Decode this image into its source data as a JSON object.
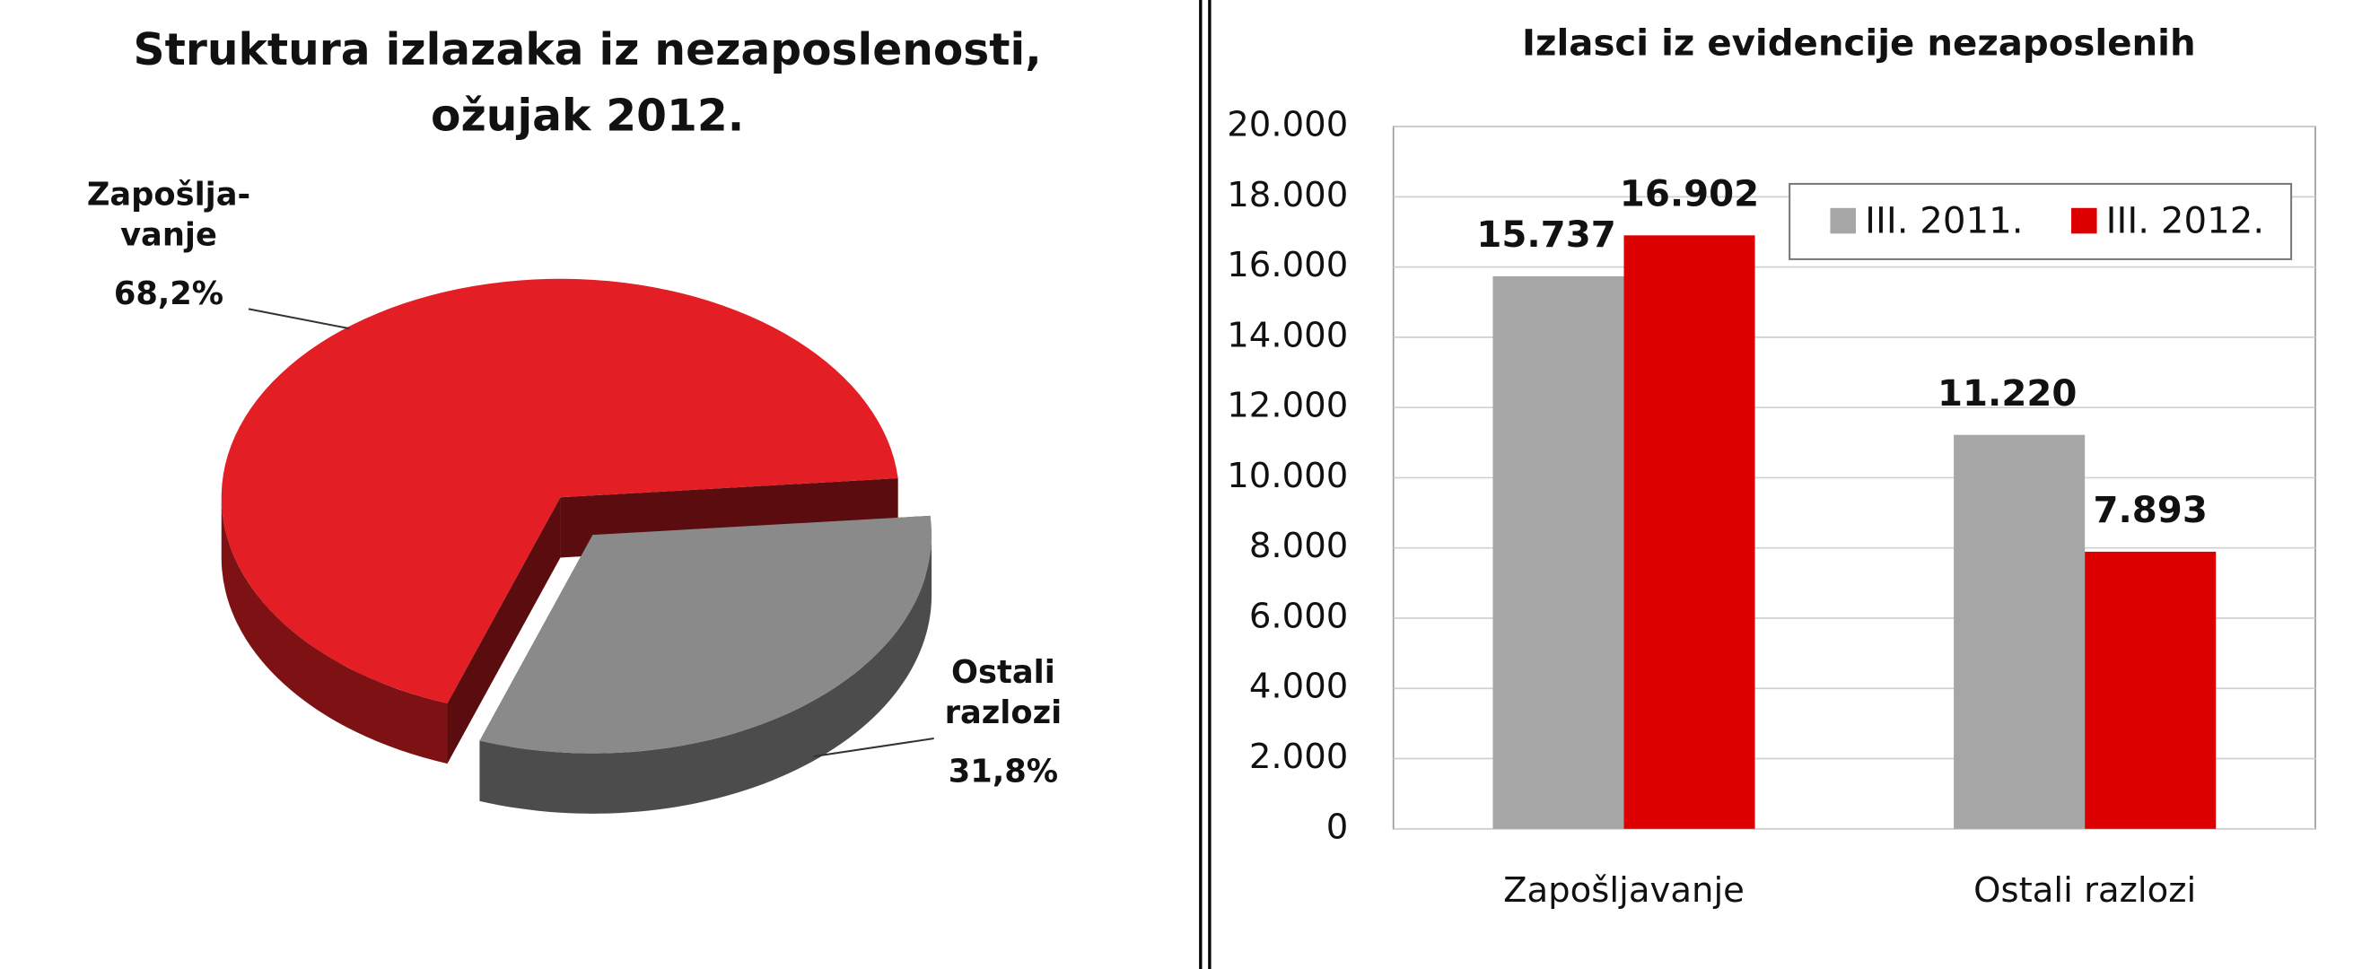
{
  "chart_data": [
    {
      "type": "pie",
      "title": "Struktura izlazaka iz nezaposlenosti,\nožujak 2012.",
      "categories": [
        "Zapošlja-\nvanje",
        "Ostali\nrazlozi"
      ],
      "values": [
        68.2,
        31.8
      ],
      "value_labels": [
        "68,2%",
        "31,8%"
      ],
      "colors": [
        "#e31e24",
        "#8a8a8a"
      ]
    },
    {
      "type": "bar",
      "title": "Izlasci iz evidencije nezaposlenih",
      "categories": [
        "Zapošljavanje",
        "Ostali razlozi"
      ],
      "series": [
        {
          "name": "III. 2011.",
          "color": "#a6a6a6",
          "label_color": "#111111",
          "values": [
            15737,
            11220
          ],
          "value_labels": [
            "15.737",
            "11.220"
          ]
        },
        {
          "name": "III. 2012.",
          "color": "#dd0000",
          "label_color": "#dd1111",
          "values": [
            16902,
            7893
          ],
          "value_labels": [
            "16.902",
            "7.893"
          ]
        }
      ],
      "ylim": [
        0,
        20000
      ],
      "yticks": [
        0,
        {
          "value": 2000,
          "label": "2.000"
        },
        {
          "value": 4000,
          "label": "4.000"
        },
        {
          "value": 6000,
          "label": "6.000"
        },
        {
          "value": 8000,
          "label": "8.000"
        },
        {
          "value": 10000,
          "label": "10.000"
        },
        {
          "value": 12000,
          "label": "12.000"
        },
        {
          "value": 14000,
          "label": "14.000"
        },
        {
          "value": 16000,
          "label": "16.000"
        },
        {
          "value": 18000,
          "label": "18.000"
        },
        {
          "value": 20000,
          "label": "20.000"
        }
      ],
      "grid": true,
      "legend": "upper right"
    }
  ]
}
